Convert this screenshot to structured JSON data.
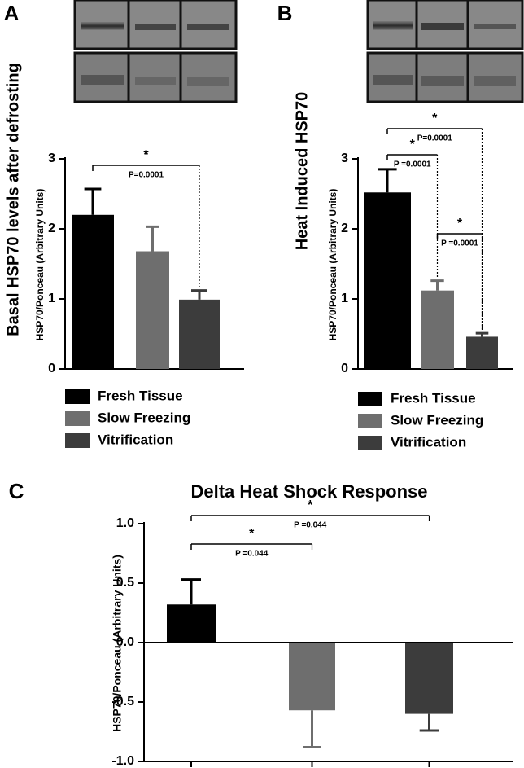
{
  "chart_data": [
    {
      "type": "bar",
      "panel": "A",
      "title": "Basal HSP70 levels after defrosting",
      "y_label": "HSP70/Ponceau (Arbitrary Units)",
      "series": [
        {
          "name": "Fresh Tissue",
          "color": "#000000",
          "values": [
            2.2
          ],
          "errors": [
            0.37
          ]
        },
        {
          "name": "Slow Freezing",
          "color": "#6e6e6e",
          "values": [
            1.68
          ],
          "errors": [
            0.35
          ]
        },
        {
          "name": "Vitrification",
          "color": "#3c3c3c",
          "values": [
            0.99
          ],
          "errors": [
            0.13
          ]
        }
      ],
      "ylim": [
        0,
        3
      ],
      "yticks": [
        0,
        1,
        2,
        3
      ],
      "legend": "bottom",
      "annotations": [
        {
          "star": "*",
          "p": "P=0.0001",
          "between": [
            0,
            2
          ]
        }
      ]
    },
    {
      "type": "bar",
      "panel": "B",
      "title": "Heat Induced HSP70",
      "y_label": "HSP70/Ponceau (Arbitrary Units)",
      "series": [
        {
          "name": "Fresh Tissue",
          "color": "#000000",
          "values": [
            2.52
          ],
          "errors": [
            0.33
          ]
        },
        {
          "name": "Slow Freezing",
          "color": "#6e6e6e",
          "values": [
            1.12
          ],
          "errors": [
            0.14
          ]
        },
        {
          "name": "Vitrification",
          "color": "#3c3c3c",
          "values": [
            0.46
          ],
          "errors": [
            0.05
          ]
        }
      ],
      "ylim": [
        0,
        3
      ],
      "yticks": [
        0,
        1,
        2,
        3
      ],
      "legend": "bottom",
      "annotations": [
        {
          "star": "*",
          "p": "P=0.0001",
          "between": [
            0,
            2
          ]
        },
        {
          "star": "*",
          "p": "P =0.0001",
          "between": [
            0,
            1
          ]
        },
        {
          "star": "*",
          "p": "P =0.0001",
          "between": [
            1,
            2
          ]
        }
      ]
    },
    {
      "type": "bar",
      "panel": "C",
      "title": "Delta Heat Shock Response",
      "y_label": "HSP70/Ponceau (Arbitrary Units)",
      "series": [
        {
          "color": "#000000",
          "values": [
            0.32
          ],
          "errors": [
            0.21
          ]
        },
        {
          "color": "#6e6e6e",
          "values": [
            -0.57
          ],
          "errors": [
            0.31
          ]
        },
        {
          "color": "#3c3c3c",
          "values": [
            -0.6
          ],
          "errors": [
            0.14
          ]
        }
      ],
      "ylim": [
        -1,
        1
      ],
      "yticks": [
        {
          "value": -1,
          "label": "-1.0"
        },
        {
          "value": -0.5,
          "label": "-0.5"
        },
        {
          "value": 0,
          "label": "0.0"
        },
        {
          "value": 0.5,
          "label": "0.5"
        },
        {
          "value": 1,
          "label": "1.0"
        }
      ],
      "annotations": [
        {
          "star": "*",
          "p": "P =0.044",
          "between": [
            0,
            2
          ]
        },
        {
          "star": "*",
          "p": "P =0.044",
          "between": [
            0,
            1
          ]
        }
      ]
    }
  ]
}
